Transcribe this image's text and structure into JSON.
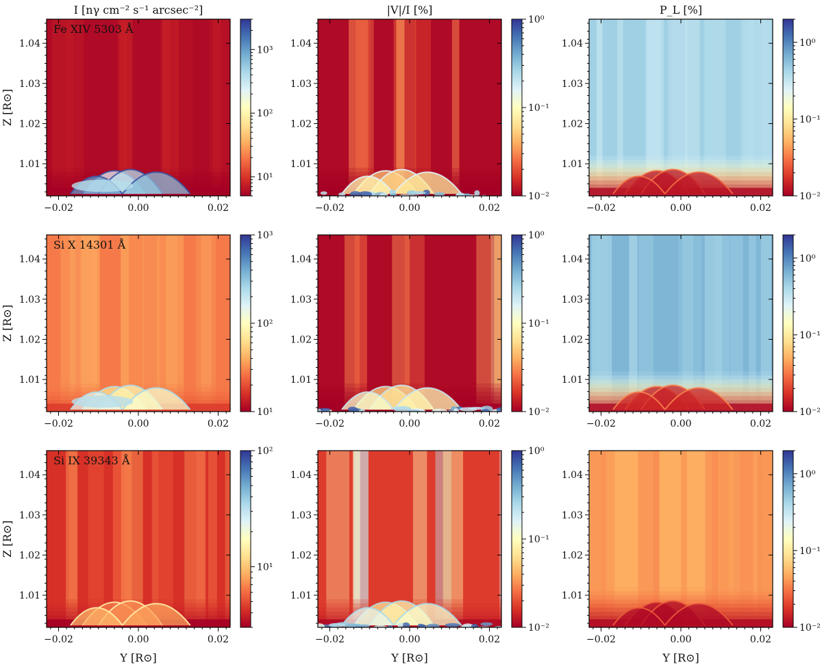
{
  "chart_data": {
    "type": "heatmap",
    "layout": {
      "rows": 3,
      "cols": 3
    },
    "column_titles": [
      "I [nγ cm⁻² s⁻¹ arcsec⁻²]",
      "|V|/I [%]",
      "P_L [%]"
    ],
    "row_labels": [
      "Fe XIV 5303 Å",
      "Si X 14301 Å",
      "Si IX 39343 Å"
    ],
    "xlabel": "Y [R⊙]",
    "ylabel": "Z [R⊙]",
    "xlim": [
      -0.023,
      0.023
    ],
    "ylim": [
      1.002,
      1.046
    ],
    "x_ticks": [
      "−0.02",
      "0.00",
      "0.02"
    ],
    "y_ticks": [
      "1.01",
      "1.02",
      "1.03",
      "1.04"
    ],
    "colormap": "RdYlBu",
    "colormap_stops": [
      "#a50026",
      "#d73027",
      "#f46d43",
      "#fdae61",
      "#fee090",
      "#ffffbf",
      "#e0f3f8",
      "#abd9e9",
      "#74add1",
      "#4575b4",
      "#313695"
    ],
    "colorbar_scale": "log",
    "panels": [
      {
        "row": 0,
        "col": 0,
        "quantity": "I",
        "line": "Fe XIV 5303 Å",
        "clim": [
          5,
          3000
        ],
        "cticks": [
          "10¹",
          "10²",
          "10³"
        ],
        "cb_tick_log": [
          1,
          2,
          3
        ],
        "background_level": 0.02,
        "loop_level": 0.8
      },
      {
        "row": 0,
        "col": 1,
        "quantity": "|V|/I",
        "line": "Fe XIV 5303 Å",
        "clim": [
          0.01,
          1
        ],
        "cticks": [
          "10⁻²",
          "10⁻¹",
          "10⁰"
        ],
        "cb_tick_log": [
          -2,
          -1,
          0
        ],
        "background_level": 0.02,
        "loop_level": 0.45
      },
      {
        "row": 0,
        "col": 2,
        "quantity": "P_L",
        "line": "Fe XIV 5303 Å",
        "clim": [
          0.01,
          2
        ],
        "cticks": [
          "10⁻²",
          "10⁻¹",
          "10⁰"
        ],
        "cb_tick_log": [
          -2,
          -1,
          0
        ],
        "background_level": 0.72,
        "loop_level": 0.05
      },
      {
        "row": 1,
        "col": 0,
        "quantity": "I",
        "line": "Si X 14301 Å",
        "clim": [
          10,
          1000
        ],
        "cticks": [
          "10¹",
          "10²",
          "10³"
        ],
        "cb_tick_log": [
          1,
          2,
          3
        ],
        "background_level": 0.22,
        "loop_level": 0.55
      },
      {
        "row": 1,
        "col": 1,
        "quantity": "|V|/I",
        "line": "Si X 14301 Å",
        "clim": [
          0.01,
          1
        ],
        "cticks": [
          "10⁻²",
          "10⁻¹",
          "10⁰"
        ],
        "cb_tick_log": [
          -2,
          -1,
          0
        ],
        "background_level": 0.02,
        "loop_level": 0.5
      },
      {
        "row": 1,
        "col": 2,
        "quantity": "P_L",
        "line": "Si X 14301 Å",
        "clim": [
          0.01,
          2
        ],
        "cticks": [
          "10⁻²",
          "10⁻¹",
          "10⁰"
        ],
        "cb_tick_log": [
          -2,
          -1,
          0
        ],
        "background_level": 0.78,
        "loop_level": 0.08
      },
      {
        "row": 2,
        "col": 0,
        "quantity": "I",
        "line": "Si IX 39343 Å",
        "clim": [
          3,
          100
        ],
        "cticks": [
          "10¹",
          "10²"
        ],
        "cb_tick_log": [
          1,
          2
        ],
        "background_level": 0.1,
        "loop_level": 0.3
      },
      {
        "row": 2,
        "col": 1,
        "quantity": "|V|/I",
        "line": "Si IX 39343 Å",
        "clim": [
          0.01,
          1
        ],
        "cticks": [
          "10⁻²",
          "10⁻¹",
          "10⁰"
        ],
        "cb_tick_log": [
          -2,
          -1,
          0
        ],
        "background_level": 0.12,
        "loop_level": 0.55
      },
      {
        "row": 2,
        "col": 2,
        "quantity": "P_L",
        "line": "Si IX 39343 Å",
        "clim": [
          0.01,
          2
        ],
        "cticks": [
          "10⁻²",
          "10⁻¹",
          "10⁰"
        ],
        "cb_tick_log": [
          -2,
          -1,
          0
        ],
        "background_level": 0.3,
        "loop_level": 0.02
      }
    ]
  }
}
